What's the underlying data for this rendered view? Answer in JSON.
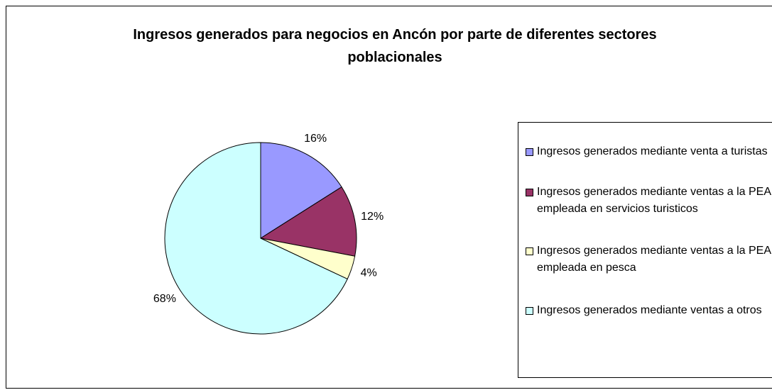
{
  "chart_data": {
    "type": "pie",
    "title": "Ingresos generados para negocios en Ancón por parte de diferentes sectores poblacionales",
    "categories": [
      "Ingresos generados mediante venta a turistas",
      "Ingresos generados mediante ventas a la PEA empleada en servicios turisticos",
      "Ingresos generados mediante ventas a la PEA empleada en pesca",
      "Ingresos generados mediante ventas a otros"
    ],
    "values": [
      16,
      12,
      4,
      68
    ],
    "value_labels": [
      "16%",
      "12%",
      "4%",
      "68%"
    ],
    "colors": [
      "#9999ff",
      "#993366",
      "#ffffcc",
      "#ccffff"
    ],
    "legend": "right"
  }
}
